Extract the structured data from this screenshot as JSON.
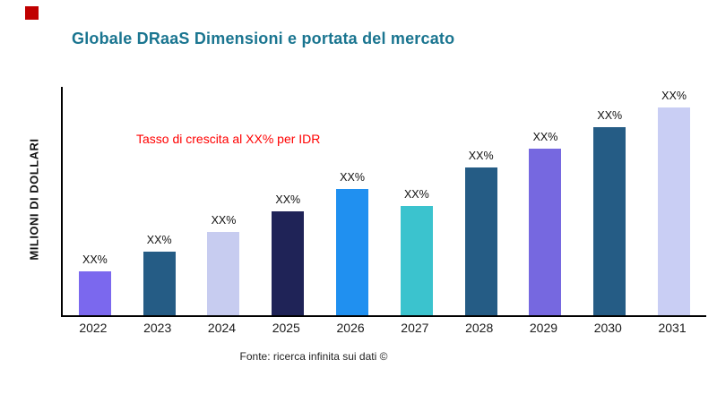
{
  "page": {
    "title": "Globale DRaaS Dimensioni e portata del mercato",
    "ylabel": "MILIONI DI DOLLARI",
    "annotation": "Tasso di crescita al XX% per IDR",
    "source": "Fonte: ricerca infinita sui dati ©"
  },
  "colors": {
    "title_text": "#1a7590",
    "annotation_text": "#ff0000",
    "accent_square": "#c00000",
    "axis": "#000000"
  },
  "chart_data": {
    "type": "bar",
    "title": "Globale DRaaS Dimensioni e portata del mercato",
    "xlabel": "",
    "ylabel": "MILIONI DI DOLLARI",
    "categories": [
      "2022",
      "2023",
      "2024",
      "2025",
      "2026",
      "2027",
      "2028",
      "2029",
      "2030",
      "2031"
    ],
    "values": [
      49,
      71,
      93,
      116,
      140,
      122,
      164,
      185,
      209,
      231
    ],
    "values_note": "relative bar heights estimated from pixels; actual figures masked as XX% in source image",
    "value_labels": [
      "XX%",
      "XX%",
      "XX%",
      "XX%",
      "XX%",
      "XX%",
      "XX%",
      "XX%",
      "XX%",
      "XX%"
    ],
    "bar_colors": [
      "#7b68ee",
      "#255c85",
      "#c7ccf0",
      "#1f2357",
      "#2090f0",
      "#3bc3ce",
      "#255c85",
      "#7668e0",
      "#255c85",
      "#c9cef4"
    ],
    "ylim": [
      0,
      254
    ],
    "grid": false,
    "legend": false,
    "annotation": "Tasso di crescita al XX% per IDR"
  }
}
